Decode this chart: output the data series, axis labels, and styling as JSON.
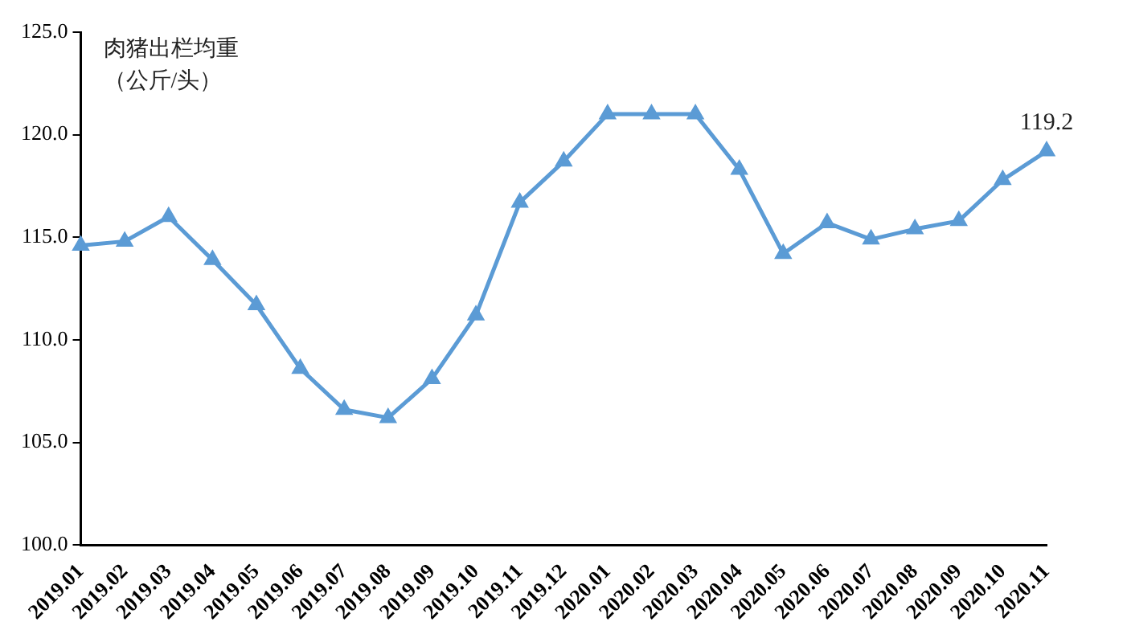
{
  "chart_data": {
    "type": "line",
    "ylabel": "肉猪出栏均重（公斤/头）",
    "categories": [
      "2019.01",
      "2019.02",
      "2019.03",
      "2019.04",
      "2019.05",
      "2019.06",
      "2019.07",
      "2019.08",
      "2019.09",
      "2019.10",
      "2019.11",
      "2019.12",
      "2020.01",
      "2020.02",
      "2020.03",
      "2020.04",
      "2020.05",
      "2020.06",
      "2020.07",
      "2020.08",
      "2020.09",
      "2020.10",
      "2020.11"
    ],
    "series": [
      {
        "color": "#5b9bd5",
        "values": [
          114.6,
          114.8,
          116.0,
          113.9,
          111.7,
          108.6,
          106.6,
          106.2,
          108.1,
          111.2,
          116.7,
          118.7,
          121.0,
          121.0,
          121.0,
          118.3,
          114.2,
          115.7,
          114.9,
          115.4,
          115.8,
          117.8,
          119.2
        ]
      }
    ],
    "ylim": [
      100,
      125
    ],
    "yticks": [
      {
        "value": 100,
        "label": "100.0"
      },
      {
        "value": 105,
        "label": "105.0"
      },
      {
        "value": 110,
        "label": "110.0"
      },
      {
        "value": 115,
        "label": "115.0"
      },
      {
        "value": 120,
        "label": "120.0"
      },
      {
        "value": 125,
        "label": "125.0"
      }
    ],
    "annotations": [
      {
        "text": "119.2",
        "x": "2020.11",
        "y": 119.2
      }
    ],
    "grid": false,
    "legend": false,
    "marker": "triangle",
    "line_style": "solid"
  }
}
